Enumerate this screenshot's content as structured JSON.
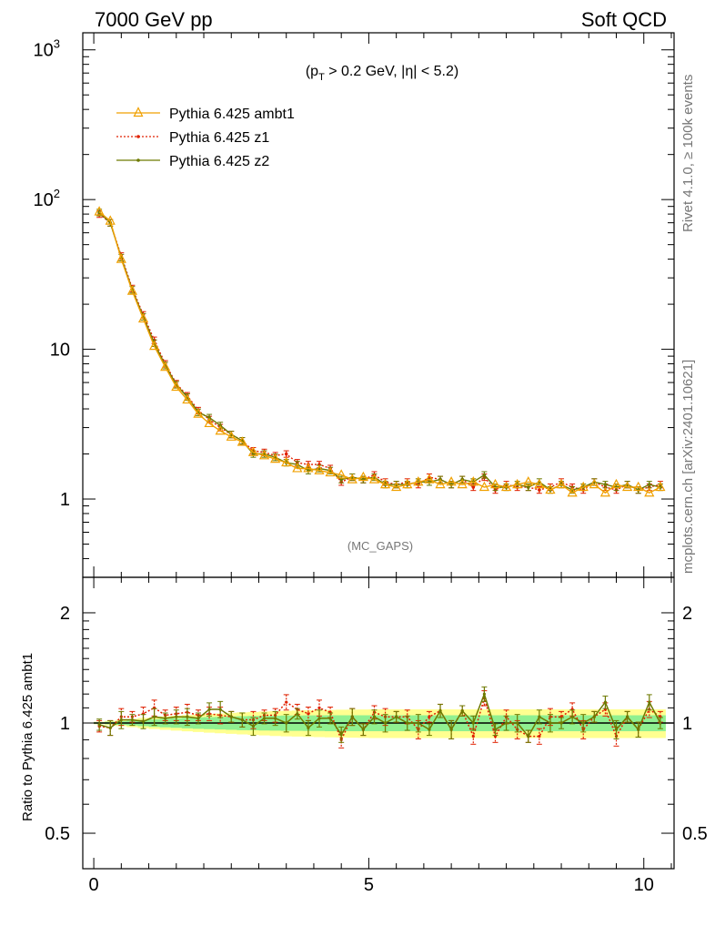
{
  "header": {
    "left": "7000 GeV pp",
    "right": "Soft QCD",
    "cut_label": "(p_T > 0.2 GeV, |η| < 5.2)",
    "analysis": "(MC_GAPS)"
  },
  "side": {
    "rivet": "Rivet 4.1.0, ≥ 100k events",
    "mcplots": "mcplots.cern.ch [arXiv:2401.10621]"
  },
  "ratio_ylabel": "Ratio to Pythia 6.425 ambt1",
  "colors": {
    "ambt1": "#f0a000",
    "z1": "#e02000",
    "z2": "#6e7a00",
    "band_green": "#90f090",
    "band_yellow": "#ffff90"
  },
  "chart_data": [
    {
      "type": "line",
      "panel": "main",
      "yscale": "log",
      "xlim": [
        -0.2,
        10.55
      ],
      "ylim": [
        0.3,
        1300
      ],
      "yticks": [
        {
          "v": 1000,
          "label": "10",
          "sup": "3"
        },
        {
          "v": 100,
          "label": "10",
          "sup": "2"
        },
        {
          "v": 10,
          "label": "10",
          "sup": ""
        },
        {
          "v": 1,
          "label": "1",
          "sup": ""
        }
      ],
      "legend": [
        {
          "key": "ambt1",
          "label": "Pythia 6.425 ambt1"
        },
        {
          "key": "z1",
          "label": "Pythia 6.425 z1"
        },
        {
          "key": "z2",
          "label": "Pythia 6.425 z2"
        }
      ],
      "x": [
        0.1,
        0.3,
        0.5,
        0.7,
        0.9,
        1.1,
        1.3,
        1.5,
        1.7,
        1.9,
        2.1,
        2.3,
        2.5,
        2.7,
        2.9,
        3.1,
        3.3,
        3.5,
        3.7,
        3.9,
        4.1,
        4.3,
        4.5,
        4.7,
        4.9,
        5.1,
        5.3,
        5.5,
        5.7,
        5.9,
        6.1,
        6.3,
        6.5,
        6.7,
        6.9,
        7.1,
        7.3,
        7.5,
        7.7,
        7.9,
        8.1,
        8.3,
        8.5,
        8.7,
        8.9,
        9.1,
        9.3,
        9.5,
        9.7,
        9.9,
        10.1,
        10.3
      ],
      "series": [
        {
          "key": "ambt1",
          "name": "Pythia 6.425 ambt1",
          "marker": "triangle",
          "values": [
            83,
            72,
            40,
            24.5,
            16,
            10.5,
            7.6,
            5.6,
            4.6,
            3.7,
            3.2,
            2.85,
            2.6,
            2.4,
            2.05,
            1.95,
            1.85,
            1.75,
            1.6,
            1.6,
            1.55,
            1.5,
            1.45,
            1.35,
            1.4,
            1.35,
            1.25,
            1.2,
            1.25,
            1.3,
            1.35,
            1.25,
            1.3,
            1.25,
            1.3,
            1.2,
            1.25,
            1.2,
            1.25,
            1.3,
            1.25,
            1.15,
            1.25,
            1.1,
            1.2,
            1.25,
            1.1,
            1.25,
            1.2,
            1.2,
            1.1,
            1.2
          ]
        },
        {
          "key": "z1",
          "name": "Pythia 6.425 z1",
          "marker": "dot",
          "values": [
            80,
            70,
            42,
            25.5,
            17,
            11.5,
            8.0,
            5.9,
            4.9,
            3.9,
            3.4,
            3.0,
            2.7,
            2.45,
            2.1,
            2.05,
            1.95,
            2.0,
            1.75,
            1.7,
            1.7,
            1.6,
            1.3,
            1.4,
            1.35,
            1.45,
            1.3,
            1.25,
            1.3,
            1.25,
            1.4,
            1.35,
            1.25,
            1.35,
            1.2,
            1.4,
            1.15,
            1.25,
            1.2,
            1.2,
            1.15,
            1.2,
            1.3,
            1.2,
            1.15,
            1.3,
            1.2,
            1.15,
            1.25,
            1.15,
            1.2,
            1.25
          ]
        },
        {
          "key": "z2",
          "name": "Pythia 6.425 z2",
          "marker": "dot",
          "values": [
            82,
            70,
            41,
            25,
            16.5,
            11,
            7.8,
            5.8,
            4.8,
            3.8,
            3.5,
            3.1,
            2.7,
            2.45,
            2.0,
            2.0,
            1.9,
            1.75,
            1.7,
            1.55,
            1.6,
            1.55,
            1.35,
            1.4,
            1.35,
            1.4,
            1.25,
            1.25,
            1.25,
            1.3,
            1.3,
            1.35,
            1.25,
            1.35,
            1.3,
            1.45,
            1.2,
            1.2,
            1.25,
            1.2,
            1.3,
            1.15,
            1.25,
            1.15,
            1.2,
            1.3,
            1.25,
            1.2,
            1.25,
            1.15,
            1.25,
            1.2
          ]
        }
      ]
    },
    {
      "type": "line",
      "panel": "ratio",
      "yscale": "log",
      "xlim": [
        -0.2,
        10.55
      ],
      "ylim": [
        0.4,
        2.5
      ],
      "ylabel": "Ratio to Pythia 6.425 ambt1",
      "yticks": [
        {
          "v": 2,
          "label": "2"
        },
        {
          "v": 1,
          "label": "1"
        },
        {
          "v": 0.5,
          "label": "0.5"
        }
      ],
      "xticks": [
        {
          "v": 0,
          "label": "0"
        },
        {
          "v": 5,
          "label": "5"
        },
        {
          "v": 10,
          "label": "10"
        }
      ],
      "reference": 1,
      "band_green_halfwidth": [
        0.005,
        0.008,
        0.012,
        0.016,
        0.02,
        0.024,
        0.027,
        0.03,
        0.033,
        0.036,
        0.038,
        0.04,
        0.042,
        0.044,
        0.045,
        0.046,
        0.047,
        0.048,
        0.048,
        0.049,
        0.049,
        0.05,
        0.05,
        0.05,
        0.05,
        0.05,
        0.05,
        0.05,
        0.05,
        0.05,
        0.05,
        0.05,
        0.05,
        0.05,
        0.05,
        0.05,
        0.05,
        0.05,
        0.05,
        0.05,
        0.05,
        0.05,
        0.05,
        0.05,
        0.05,
        0.05,
        0.05,
        0.05,
        0.05,
        0.05,
        0.05,
        0.05
      ],
      "band_yellow_halfwidth": [
        0.008,
        0.014,
        0.02,
        0.026,
        0.032,
        0.037,
        0.042,
        0.047,
        0.051,
        0.055,
        0.059,
        0.062,
        0.066,
        0.069,
        0.072,
        0.075,
        0.078,
        0.08,
        0.082,
        0.084,
        0.085,
        0.086,
        0.087,
        0.088,
        0.089,
        0.09,
        0.09,
        0.09,
        0.09,
        0.09,
        0.09,
        0.09,
        0.09,
        0.09,
        0.09,
        0.09,
        0.09,
        0.09,
        0.09,
        0.09,
        0.09,
        0.09,
        0.09,
        0.09,
        0.09,
        0.09,
        0.09,
        0.09,
        0.09,
        0.09,
        0.09,
        0.09
      ],
      "series": [
        {
          "key": "z1",
          "name": "Pythia 6.425 z1",
          "values": [
            0.98,
            0.97,
            1.04,
            1.04,
            1.06,
            1.1,
            1.05,
            1.06,
            1.07,
            1.05,
            1.06,
            1.05,
            1.04,
            1.02,
            1.02,
            1.05,
            1.05,
            1.14,
            1.09,
            1.06,
            1.1,
            1.07,
            0.9,
            1.04,
            0.96,
            1.07,
            1.04,
            1.04,
            1.04,
            0.96,
            1.04,
            1.08,
            0.96,
            1.08,
            0.92,
            1.17,
            0.92,
            1.04,
            0.96,
            0.92,
            0.92,
            1.04,
            1.04,
            1.09,
            0.96,
            1.04,
            1.09,
            0.92,
            1.04,
            0.96,
            1.09,
            1.04
          ]
        },
        {
          "key": "z2",
          "name": "Pythia 6.425 z2",
          "values": [
            0.99,
            0.97,
            1.02,
            1.02,
            1.01,
            1.04,
            1.03,
            1.04,
            1.04,
            1.03,
            1.09,
            1.09,
            1.04,
            1.02,
            0.98,
            1.03,
            1.03,
            1.0,
            1.06,
            0.97,
            1.03,
            1.03,
            0.93,
            1.04,
            0.96,
            1.04,
            1.0,
            1.04,
            1.0,
            1.0,
            0.96,
            1.08,
            0.96,
            1.08,
            1.0,
            1.2,
            0.96,
            1.0,
            1.0,
            0.92,
            1.04,
            1.0,
            1.0,
            1.04,
            1.0,
            1.04,
            1.14,
            0.96,
            1.04,
            0.96,
            1.14,
            1.0
          ]
        }
      ]
    }
  ]
}
